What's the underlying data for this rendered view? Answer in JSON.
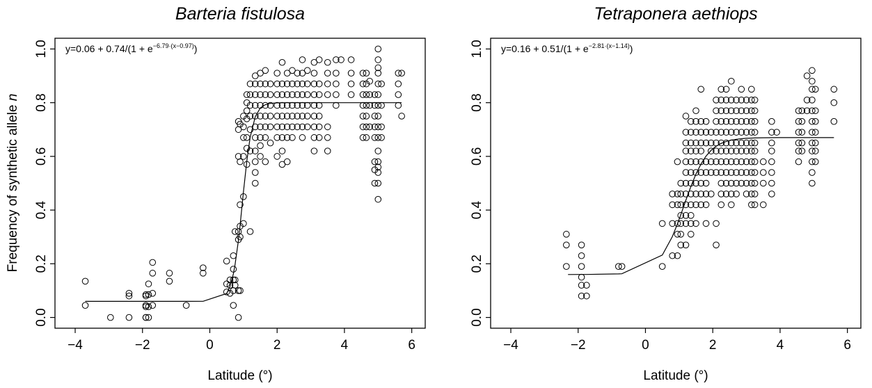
{
  "figure": {
    "ylabel_prefix": "Frequency of synthetic allele ",
    "ylabel_italic": "n"
  },
  "chart_data": [
    {
      "type": "scatter",
      "title": "Barteria fistulosa",
      "xlabel": "Latitude (°)",
      "ylabel": "Frequency of synthetic allele n",
      "xlim": [
        -4.6,
        6.4
      ],
      "ylim": [
        -0.04,
        1.04
      ],
      "x_ticks": [
        -4,
        -2,
        0,
        2,
        4,
        6
      ],
      "x_tick_labels": [
        "−4",
        "−2",
        "0",
        "2",
        "4",
        "6"
      ],
      "y_ticks": [
        0.0,
        0.2,
        0.4,
        0.6,
        0.8,
        1.0
      ],
      "y_tick_labels": [
        "0.0",
        "0.2",
        "0.4",
        "0.6",
        "0.8",
        "1.0"
      ],
      "equation": {
        "prefix": "y=0.06 + 0.74/(1 + e",
        "exponent": "−6.79·(x−0.97)",
        "suffix": ")"
      },
      "fit": {
        "a": 0.06,
        "b": 0.74,
        "k": 6.79,
        "x0": 0.97,
        "x_range": [
          -3.7,
          5.7
        ]
      },
      "clusters": [
        {
          "x": -3.7,
          "y": [
            0.045,
            0.135
          ]
        },
        {
          "x": -2.95,
          "y": [
            0.0
          ]
        },
        {
          "x": -2.4,
          "y": [
            0.0,
            0.08,
            0.09
          ]
        },
        {
          "x": -1.9,
          "y": [
            0.0,
            0.0,
            0.04,
            0.045,
            0.08,
            0.085
          ]
        },
        {
          "x": -1.82,
          "y": [
            0.0,
            0.04,
            0.085,
            0.125
          ]
        },
        {
          "x": -1.7,
          "y": [
            0.045,
            0.09,
            0.165,
            0.205
          ]
        },
        {
          "x": -1.2,
          "y": [
            0.135,
            0.165
          ]
        },
        {
          "x": -0.7,
          "y": [
            0.045
          ]
        },
        {
          "x": -0.2,
          "y": [
            0.165,
            0.185
          ]
        },
        {
          "x": 0.5,
          "y": [
            0.095,
            0.125,
            0.21
          ]
        },
        {
          "x": 0.6,
          "y": [
            0.09,
            0.12,
            0.14
          ]
        },
        {
          "x": 0.7,
          "y": [
            0.045,
            0.1,
            0.14,
            0.18,
            0.23
          ]
        },
        {
          "x": 0.75,
          "y": [
            0.12,
            0.14,
            0.32
          ]
        },
        {
          "x": 0.85,
          "y": [
            0.0,
            0.1,
            0.29,
            0.32,
            0.6,
            0.7,
            0.73
          ]
        },
        {
          "x": 0.9,
          "y": [
            0.1,
            0.3,
            0.34,
            0.42,
            0.58,
            0.72
          ]
        },
        {
          "x": 1.0,
          "y": [
            0.35,
            0.45,
            0.6,
            0.67,
            0.71,
            0.75
          ]
        },
        {
          "x": 1.1,
          "y": [
            0.57,
            0.63,
            0.67,
            0.74,
            0.77,
            0.8,
            0.83
          ]
        },
        {
          "x": 1.2,
          "y": [
            0.32,
            0.62,
            0.7,
            0.75,
            0.79,
            0.83,
            0.87
          ]
        },
        {
          "x": 1.35,
          "y": [
            0.5,
            0.54,
            0.58,
            0.62,
            0.67,
            0.71,
            0.75,
            0.79,
            0.83,
            0.87,
            0.9
          ]
        },
        {
          "x": 1.5,
          "y": [
            0.6,
            0.64,
            0.67,
            0.71,
            0.75,
            0.79,
            0.83,
            0.87,
            0.91
          ]
        },
        {
          "x": 1.65,
          "y": [
            0.58,
            0.67,
            0.71,
            0.75,
            0.79,
            0.83,
            0.87,
            0.92
          ]
        },
        {
          "x": 1.8,
          "y": [
            0.65,
            0.71,
            0.75,
            0.79,
            0.83,
            0.87
          ]
        },
        {
          "x": 2.0,
          "y": [
            0.6,
            0.67,
            0.71,
            0.75,
            0.79,
            0.83,
            0.87,
            0.91
          ]
        },
        {
          "x": 2.15,
          "y": [
            0.57,
            0.62,
            0.67,
            0.71,
            0.75,
            0.79,
            0.83,
            0.87,
            0.95
          ]
        },
        {
          "x": 2.3,
          "y": [
            0.58,
            0.67,
            0.71,
            0.75,
            0.79,
            0.83,
            0.87,
            0.91
          ]
        },
        {
          "x": 2.45,
          "y": [
            0.67,
            0.71,
            0.75,
            0.79,
            0.83,
            0.87,
            0.92
          ]
        },
        {
          "x": 2.6,
          "y": [
            0.71,
            0.75,
            0.79,
            0.83,
            0.87,
            0.91
          ]
        },
        {
          "x": 2.75,
          "y": [
            0.67,
            0.71,
            0.75,
            0.79,
            0.83,
            0.87,
            0.91,
            0.96
          ]
        },
        {
          "x": 2.9,
          "y": [
            0.71,
            0.75,
            0.79,
            0.83,
            0.87,
            0.92
          ]
        },
        {
          "x": 3.1,
          "y": [
            0.62,
            0.67,
            0.71,
            0.75,
            0.79,
            0.83,
            0.87,
            0.91,
            0.95
          ]
        },
        {
          "x": 3.25,
          "y": [
            0.67,
            0.71,
            0.75,
            0.79,
            0.83,
            0.87,
            0.96
          ]
        },
        {
          "x": 3.5,
          "y": [
            0.62,
            0.67,
            0.71,
            0.83,
            0.87,
            0.91,
            0.95
          ]
        },
        {
          "x": 3.75,
          "y": [
            0.79,
            0.83,
            0.87,
            0.91,
            0.96
          ]
        },
        {
          "x": 3.9,
          "y": [
            0.96
          ]
        },
        {
          "x": 4.2,
          "y": [
            0.83,
            0.87,
            0.91,
            0.96
          ]
        },
        {
          "x": 4.55,
          "y": [
            0.67,
            0.71,
            0.75,
            0.79,
            0.83,
            0.87,
            0.91
          ]
        },
        {
          "x": 4.65,
          "y": [
            0.67,
            0.71,
            0.75,
            0.79,
            0.83,
            0.87,
            0.91
          ]
        },
        {
          "x": 4.75,
          "y": [
            0.71,
            0.79,
            0.83,
            0.88
          ]
        },
        {
          "x": 4.9,
          "y": [
            0.5,
            0.55,
            0.58,
            0.67,
            0.71,
            0.75,
            0.79,
            0.83
          ]
        },
        {
          "x": 5.0,
          "y": [
            0.44,
            0.5,
            0.54,
            0.56,
            0.58,
            0.62,
            0.67,
            0.71,
            0.75,
            0.79,
            0.83,
            0.87,
            0.91,
            0.93,
            0.96,
            1.0
          ]
        },
        {
          "x": 5.1,
          "y": [
            0.67,
            0.71,
            0.79,
            0.87
          ]
        },
        {
          "x": 5.6,
          "y": [
            0.79,
            0.83,
            0.87,
            0.91
          ]
        },
        {
          "x": 5.7,
          "y": [
            0.75,
            0.91
          ]
        }
      ]
    },
    {
      "type": "scatter",
      "title": "Tetraponera aethiops",
      "xlabel": "Latitude (°)",
      "ylabel": "",
      "xlim": [
        -4.6,
        6.4
      ],
      "ylim": [
        -0.04,
        1.04
      ],
      "x_ticks": [
        -4,
        -2,
        0,
        2,
        4,
        6
      ],
      "x_tick_labels": [
        "−4",
        "−2",
        "0",
        "2",
        "4",
        "6"
      ],
      "y_ticks": [
        0.0,
        0.2,
        0.4,
        0.6,
        0.8,
        1.0
      ],
      "y_tick_labels": [
        "0.0",
        "0.2",
        "0.4",
        "0.6",
        "0.8",
        "1.0"
      ],
      "equation": {
        "prefix": "y=0.16 + 0.51/(1 + e",
        "exponent": "−2.81·(x−1.14)",
        "suffix": ")"
      },
      "fit": {
        "a": 0.16,
        "b": 0.51,
        "k": 2.81,
        "x0": 1.14,
        "x_range": [
          -2.3,
          5.6
        ]
      },
      "clusters": [
        {
          "x": -2.35,
          "y": [
            0.19,
            0.27,
            0.31
          ]
        },
        {
          "x": -1.9,
          "y": [
            0.08,
            0.12,
            0.15,
            0.19,
            0.23,
            0.27
          ]
        },
        {
          "x": -1.75,
          "y": [
            0.08,
            0.12
          ]
        },
        {
          "x": -0.8,
          "y": [
            0.19
          ]
        },
        {
          "x": -0.7,
          "y": [
            0.19
          ]
        },
        {
          "x": 0.5,
          "y": [
            0.19,
            0.35
          ]
        },
        {
          "x": 0.8,
          "y": [
            0.23,
            0.35,
            0.42,
            0.46
          ]
        },
        {
          "x": 0.95,
          "y": [
            0.23,
            0.31,
            0.35,
            0.42,
            0.46,
            0.58
          ]
        },
        {
          "x": 1.05,
          "y": [
            0.27,
            0.31,
            0.35,
            0.38,
            0.42,
            0.46,
            0.5
          ]
        },
        {
          "x": 1.2,
          "y": [
            0.27,
            0.35,
            0.38,
            0.42,
            0.46,
            0.5,
            0.54,
            0.58,
            0.62,
            0.65,
            0.69,
            0.75
          ]
        },
        {
          "x": 1.35,
          "y": [
            0.31,
            0.35,
            0.38,
            0.42,
            0.46,
            0.5,
            0.54,
            0.58,
            0.62,
            0.65,
            0.69,
            0.73
          ]
        },
        {
          "x": 1.5,
          "y": [
            0.35,
            0.42,
            0.46,
            0.5,
            0.54,
            0.58,
            0.62,
            0.65,
            0.69,
            0.73,
            0.77
          ]
        },
        {
          "x": 1.65,
          "y": [
            0.42,
            0.46,
            0.5,
            0.54,
            0.58,
            0.62,
            0.65,
            0.69,
            0.73,
            0.85
          ]
        },
        {
          "x": 1.8,
          "y": [
            0.35,
            0.42,
            0.46,
            0.5,
            0.54,
            0.58,
            0.65,
            0.69,
            0.73
          ]
        },
        {
          "x": 1.95,
          "y": [
            0.46,
            0.54,
            0.58,
            0.62,
            0.65,
            0.69
          ]
        },
        {
          "x": 2.1,
          "y": [
            0.27,
            0.35,
            0.54,
            0.58,
            0.62,
            0.65,
            0.69,
            0.73,
            0.77,
            0.81
          ]
        },
        {
          "x": 2.25,
          "y": [
            0.42,
            0.46,
            0.5,
            0.54,
            0.58,
            0.62,
            0.65,
            0.69,
            0.73,
            0.77,
            0.81,
            0.85
          ]
        },
        {
          "x": 2.4,
          "y": [
            0.46,
            0.5,
            0.54,
            0.58,
            0.62,
            0.65,
            0.69,
            0.73,
            0.77,
            0.81,
            0.85
          ]
        },
        {
          "x": 2.55,
          "y": [
            0.42,
            0.46,
            0.5,
            0.54,
            0.58,
            0.62,
            0.65,
            0.69,
            0.73,
            0.77,
            0.81,
            0.88
          ]
        },
        {
          "x": 2.7,
          "y": [
            0.46,
            0.5,
            0.54,
            0.58,
            0.62,
            0.65,
            0.69,
            0.73,
            0.77,
            0.81
          ]
        },
        {
          "x": 2.85,
          "y": [
            0.5,
            0.54,
            0.58,
            0.62,
            0.65,
            0.69,
            0.73,
            0.77,
            0.81,
            0.85
          ]
        },
        {
          "x": 3.0,
          "y": [
            0.46,
            0.5,
            0.54,
            0.58,
            0.62,
            0.65,
            0.69,
            0.73,
            0.77,
            0.81
          ]
        },
        {
          "x": 3.15,
          "y": [
            0.42,
            0.46,
            0.5,
            0.54,
            0.58,
            0.62,
            0.65,
            0.69,
            0.73,
            0.77,
            0.81,
            0.85
          ]
        },
        {
          "x": 3.25,
          "y": [
            0.42,
            0.46,
            0.5,
            0.54,
            0.58,
            0.62,
            0.65,
            0.69,
            0.73,
            0.77,
            0.81
          ]
        },
        {
          "x": 3.5,
          "y": [
            0.42,
            0.5,
            0.54,
            0.58
          ]
        },
        {
          "x": 3.75,
          "y": [
            0.46,
            0.5,
            0.54,
            0.58,
            0.62,
            0.65,
            0.69,
            0.73
          ]
        },
        {
          "x": 3.9,
          "y": [
            0.69
          ]
        },
        {
          "x": 4.55,
          "y": [
            0.58,
            0.62,
            0.65,
            0.69,
            0.73,
            0.77
          ]
        },
        {
          "x": 4.65,
          "y": [
            0.62,
            0.65,
            0.69,
            0.73,
            0.77
          ]
        },
        {
          "x": 4.8,
          "y": [
            0.77,
            0.81,
            0.9
          ]
        },
        {
          "x": 4.95,
          "y": [
            0.5,
            0.54,
            0.58,
            0.62,
            0.65,
            0.69,
            0.73,
            0.77,
            0.81,
            0.85,
            0.88,
            0.92
          ]
        },
        {
          "x": 5.05,
          "y": [
            0.58,
            0.62,
            0.65,
            0.69,
            0.73,
            0.77,
            0.85
          ]
        },
        {
          "x": 5.6,
          "y": [
            0.73,
            0.8,
            0.85
          ]
        }
      ]
    }
  ]
}
